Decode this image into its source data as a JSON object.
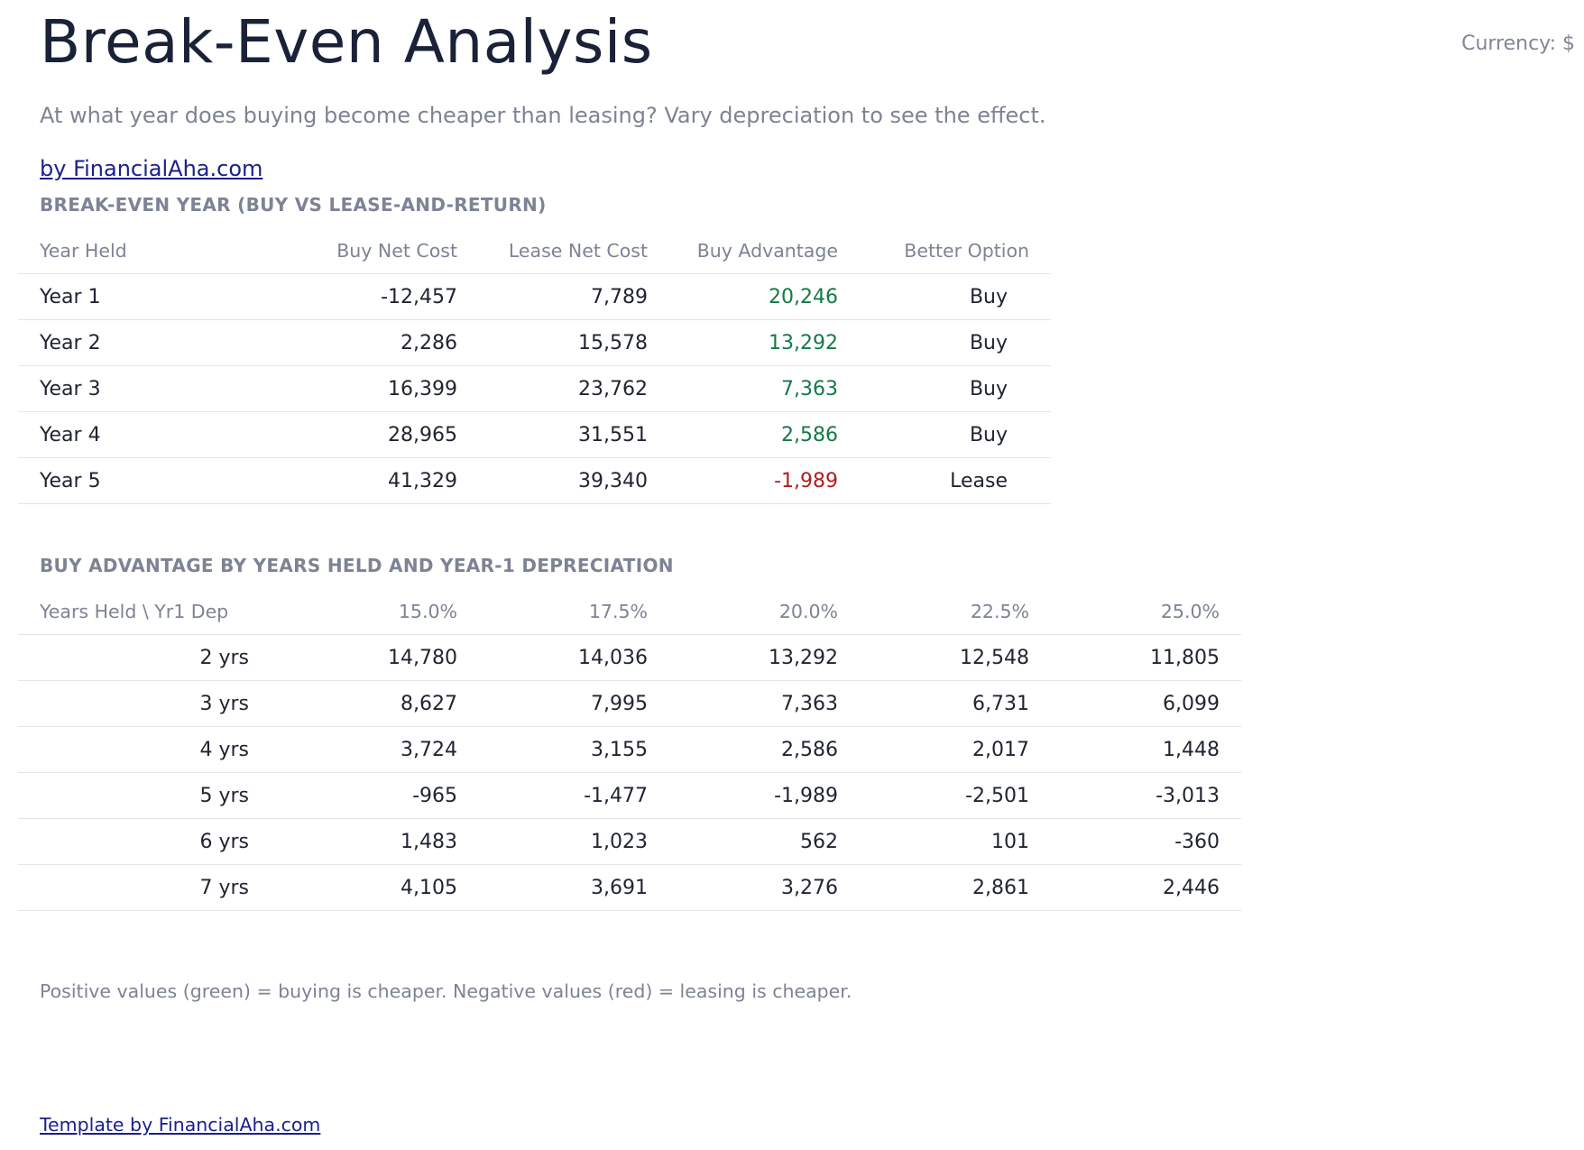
{
  "header": {
    "title": "Break-Even Analysis",
    "currency": "Currency: $",
    "subtitle": "At what year does buying become cheaper than leasing? Vary depreciation to see the effect.",
    "brand_link": "by FinancialAha.com"
  },
  "break_even": {
    "section_title": "BREAK-EVEN YEAR (BUY VS LEASE-AND-RETURN)",
    "columns": [
      "Year Held",
      "Buy Net Cost",
      "Lease Net Cost",
      "Buy Advantage",
      "Better Option"
    ],
    "rows": [
      {
        "year": "Year 1",
        "buy": "-12,457",
        "lease": "7,789",
        "advantage": "20,246",
        "option": "Buy"
      },
      {
        "year": "Year 2",
        "buy": "2,286",
        "lease": "15,578",
        "advantage": "13,292",
        "option": "Buy"
      },
      {
        "year": "Year 3",
        "buy": "16,399",
        "lease": "23,762",
        "advantage": "7,363",
        "option": "Buy"
      },
      {
        "year": "Year 4",
        "buy": "28,965",
        "lease": "31,551",
        "advantage": "2,586",
        "option": "Buy"
      },
      {
        "year": "Year 5",
        "buy": "41,329",
        "lease": "39,340",
        "advantage": "-1,989",
        "option": "Lease"
      }
    ]
  },
  "sensitivity": {
    "section_title": "BUY ADVANTAGE BY YEARS HELD AND YEAR-1 DEPRECIATION",
    "corner_label": "Years Held \\ Yr1 Dep",
    "columns": [
      "15.0%",
      "17.5%",
      "20.0%",
      "22.5%",
      "25.0%"
    ],
    "rows": [
      {
        "label": "2 yrs",
        "values": [
          "14,780",
          "14,036",
          "13,292",
          "12,548",
          "11,805"
        ]
      },
      {
        "label": "3 yrs",
        "values": [
          "8,627",
          "7,995",
          "7,363",
          "6,731",
          "6,099"
        ]
      },
      {
        "label": "4 yrs",
        "values": [
          "3,724",
          "3,155",
          "2,586",
          "2,017",
          "1,448"
        ]
      },
      {
        "label": "5 yrs",
        "values": [
          "-965",
          "-1,477",
          "-1,989",
          "-2,501",
          "-3,013"
        ]
      },
      {
        "label": "6 yrs",
        "values": [
          "1,483",
          "1,023",
          "562",
          "101",
          "-360"
        ]
      },
      {
        "label": "7 yrs",
        "values": [
          "4,105",
          "3,691",
          "3,276",
          "2,861",
          "2,446"
        ]
      }
    ]
  },
  "note": "Positive values (green) = buying is cheaper. Negative values (red) = leasing is cheaper.",
  "footer": {
    "link": "Template by FinancialAha.com"
  },
  "colors": {
    "positive": "#147a45",
    "negative": "#b31c1c",
    "link": "#1a1f8c"
  }
}
